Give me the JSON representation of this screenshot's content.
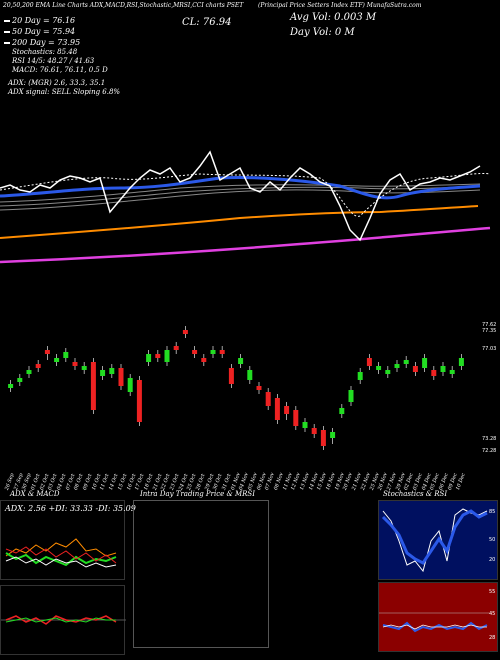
{
  "header": {
    "line1_left": "20,50,200 EMA Line Charts ADX,MACD,RSI,Stochastic,MRSI,CCI charts PSET",
    "line1_mid": "(Principal Price Setters Index ETF) MunafaSutra.com",
    "legend": [
      {
        "label": "20 Day = 76.16",
        "color": "#ffffff"
      },
      {
        "label": "50 Day = 75.94",
        "color": "#ffffff"
      },
      {
        "label": "200 Day = 73.95",
        "color": "#ffffff"
      }
    ],
    "cl": "CL: 76.94",
    "avg_vol": "Avg Vol: 0.003 M",
    "day_vol": "Day Vol: 0 M",
    "stochastics": "Stochastics: 85.48",
    "rsi": "RSI 14/5: 48.27 / 41.63",
    "macd": "MACD: 76.61, 76.11, 0.5 D",
    "adx": "ADX: (MGR) 2.6, 33.3, 35.1",
    "adx_signal": "ADX signal: SELL Sloping 6.8%"
  },
  "price_labels": [
    "77.62",
    "77.35",
    "77.03",
    "73.28",
    "72.28"
  ],
  "date_labels": [
    "26 Sep",
    "27 Sep",
    "30 Sep",
    "01 Oct",
    "02 Oct",
    "03 Oct",
    "04 Oct",
    "07 Oct",
    "08 Oct",
    "09 Oct",
    "10 Oct",
    "11 Oct",
    "14 Oct",
    "15 Oct",
    "16 Oct",
    "17 Oct",
    "18 Oct",
    "21 Oct",
    "22 Oct",
    "23 Oct",
    "24 Oct",
    "25 Oct",
    "28 Oct",
    "29 Oct",
    "30 Oct",
    "31 Oct",
    "01 Nov",
    "04 Nov",
    "05 Nov",
    "06 Nov",
    "07 Nov",
    "08 Nov",
    "11 Nov",
    "12 Nov",
    "13 Nov",
    "14 Nov",
    "15 Nov",
    "18 Nov",
    "19 Nov",
    "20 Nov",
    "21 Nov",
    "22 Nov",
    "25 Nov",
    "26 Nov",
    "27 Nov",
    "29 Nov",
    "02 Dec",
    "03 Dec",
    "04 Dec",
    "05 Dec",
    "06 Dec",
    "09 Dec",
    "10 Dec"
  ],
  "panels": {
    "adx_macd_title": "ADX & MACD",
    "adx_values": "ADX: 2.56  +DI: 33.33 -DI: 35.09",
    "intraday_title": "Intra Day Trading Price & MRSI",
    "stoch_title": "Stochastics & RSI",
    "stoch_levels": [
      "85",
      "50",
      "20"
    ],
    "rsi_levels": [
      "55",
      "45",
      "28"
    ]
  },
  "colors": {
    "ema20": "#ffffff",
    "ema50": "#2b59e8",
    "ema200": "#ff8c00",
    "ema_long": "#e040e0",
    "up": "#22dd22",
    "down": "#ee2222"
  }
}
